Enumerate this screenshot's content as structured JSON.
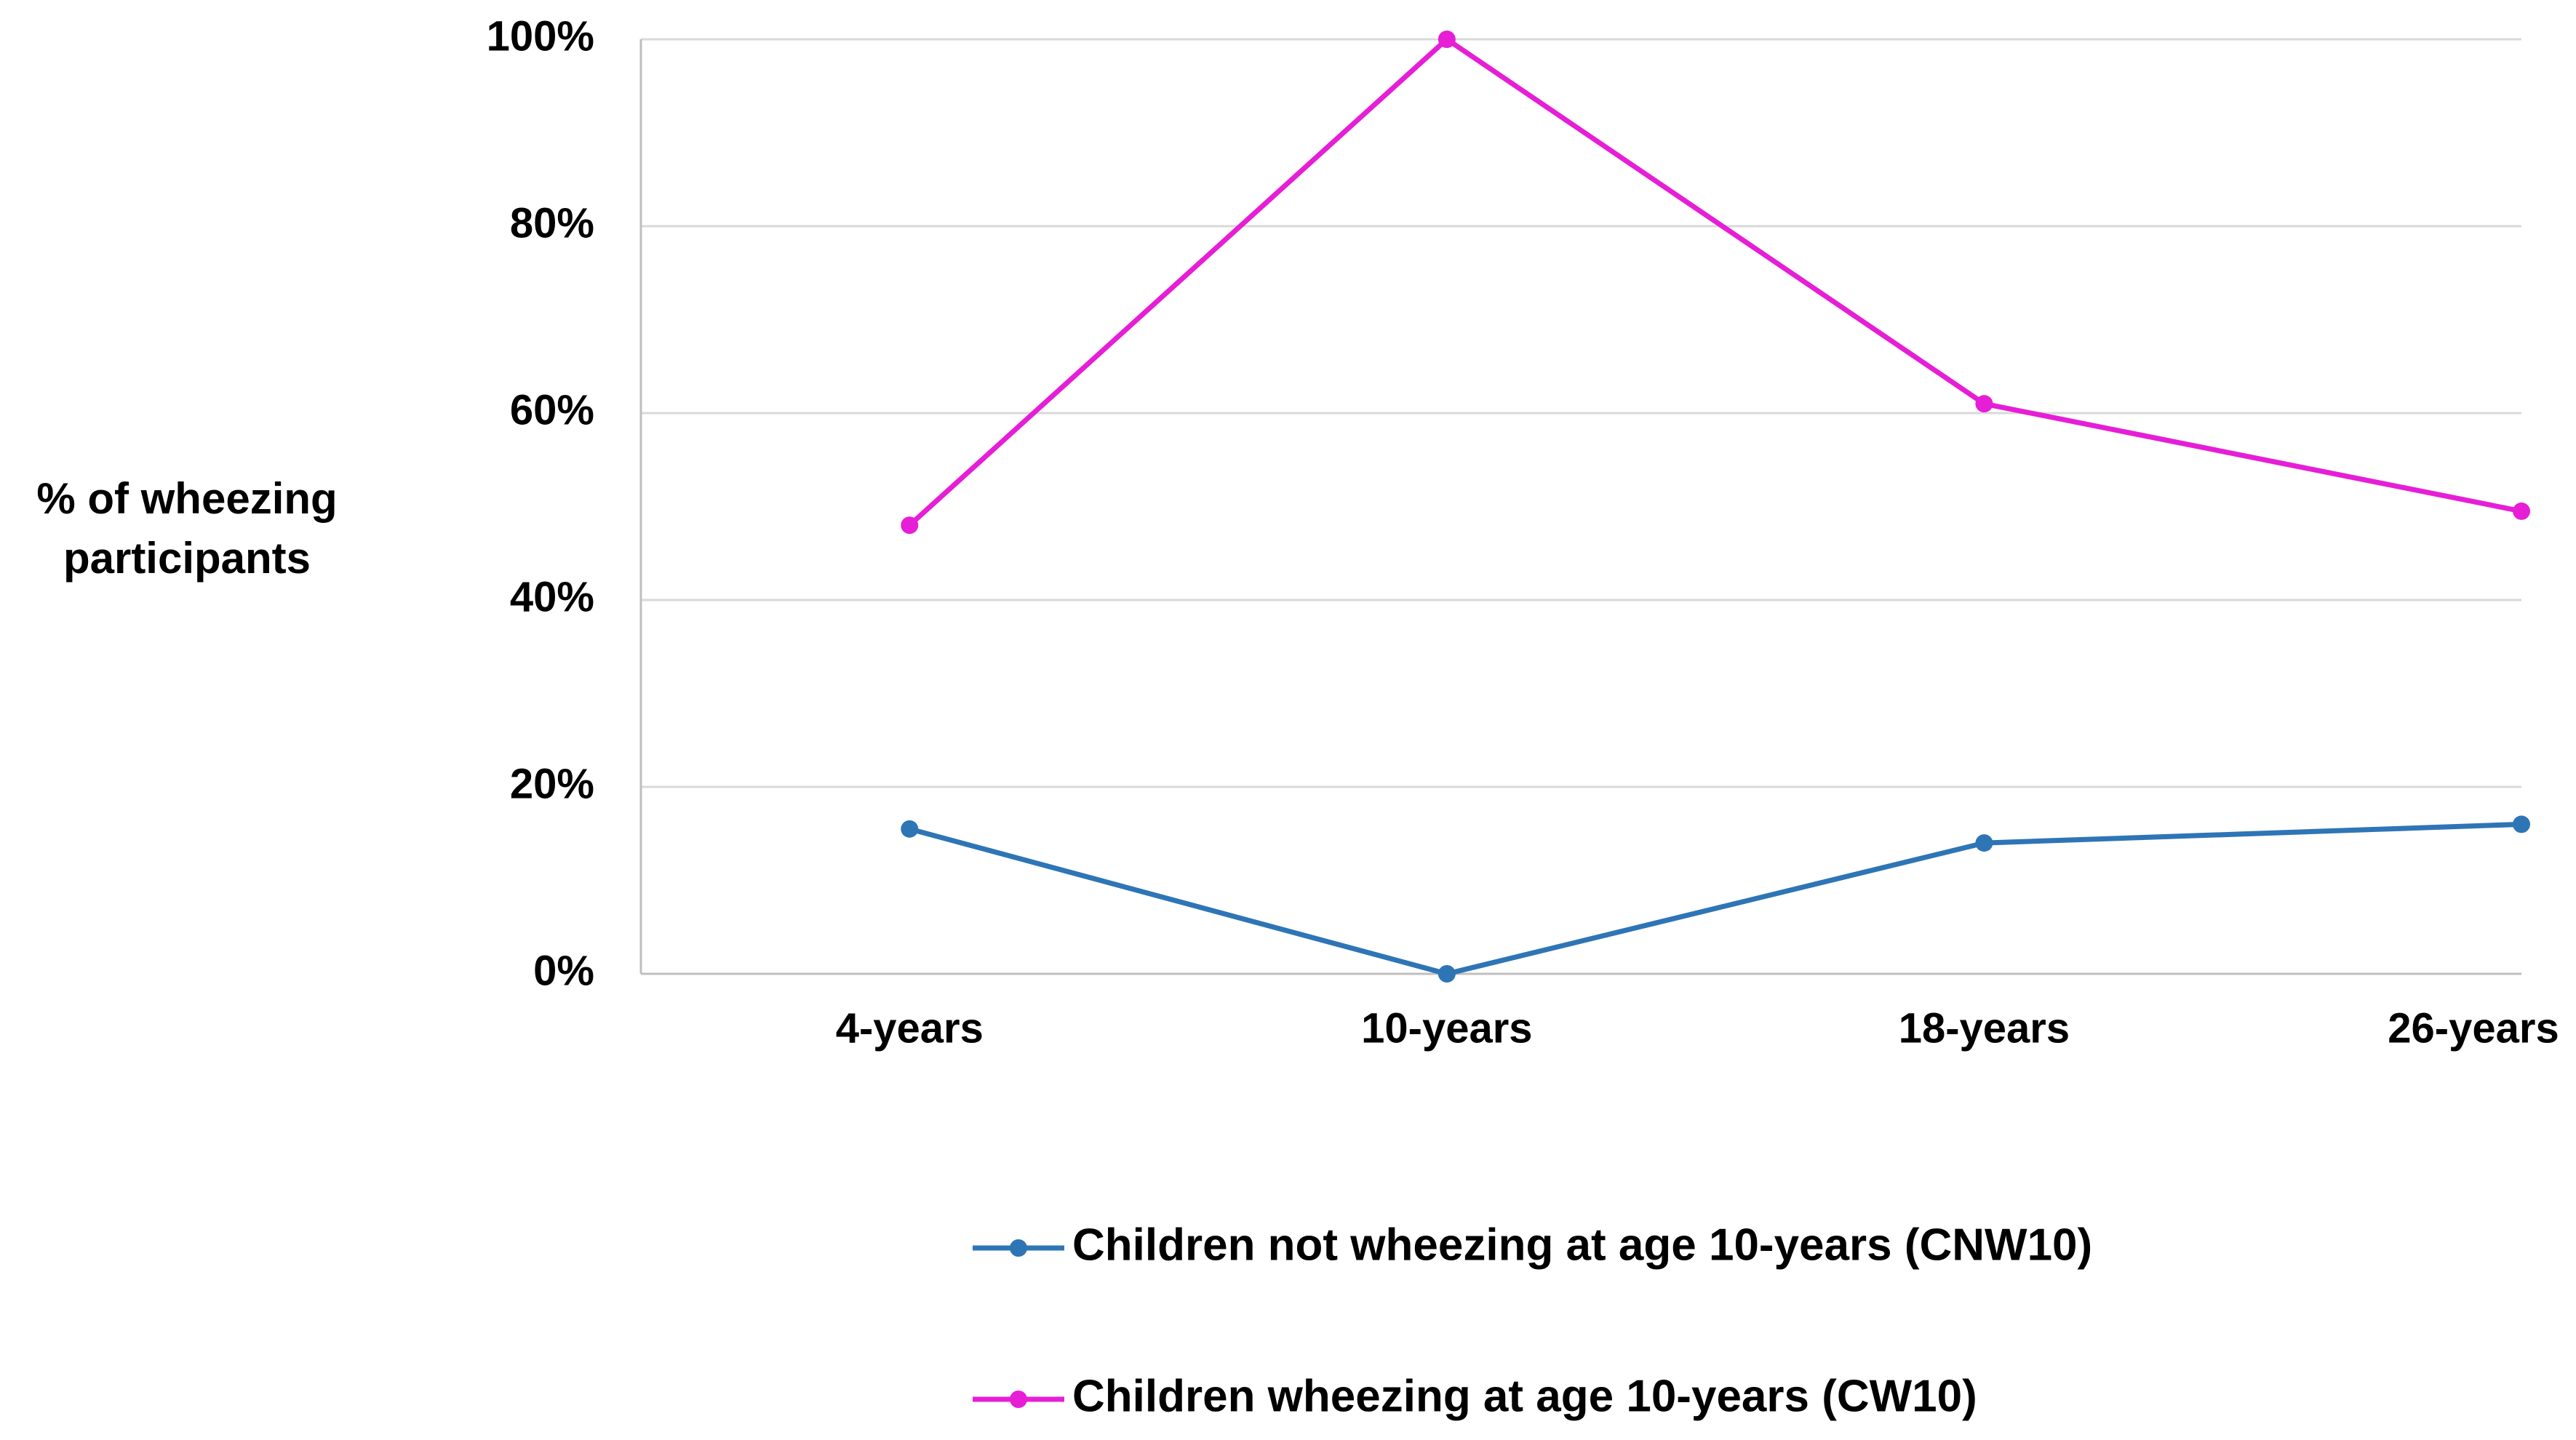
{
  "chart_data": {
    "type": "line",
    "y_label": "% of wheezing participants",
    "categories": [
      "4-years",
      "10-years",
      "18-years",
      "26-years"
    ],
    "series": [
      {
        "name": "Children not wheezing at age 10-years (CNW10)",
        "color": "#2e75b6",
        "values": [
          15.5,
          0,
          14,
          16
        ]
      },
      {
        "name": "Children wheezing at age 10-years (CW10)",
        "color": "#e61ed6",
        "values": [
          48,
          100,
          61,
          49.5
        ]
      }
    ],
    "ylim": [
      0,
      100
    ],
    "yticks": [
      {
        "value": 0,
        "label": "0%"
      },
      {
        "value": 20,
        "label": "20%"
      },
      {
        "value": 40,
        "label": "40%"
      },
      {
        "value": 60,
        "label": "60%"
      },
      {
        "value": 80,
        "label": "80%"
      },
      {
        "value": 100,
        "label": "100%"
      }
    ],
    "grid": true,
    "legend": "bottom"
  }
}
